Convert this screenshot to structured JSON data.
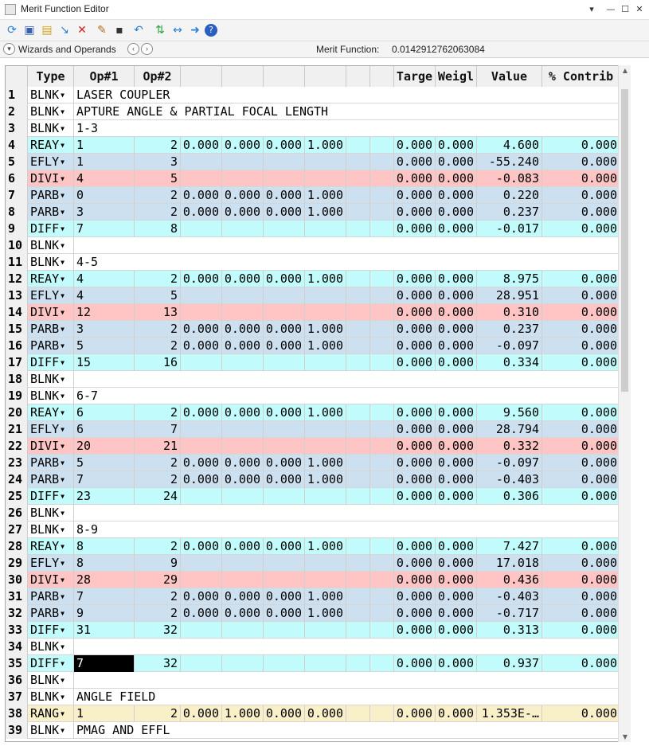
{
  "window": {
    "title": "Merit Function Editor",
    "buttons": [
      "▾",
      "—",
      "☐",
      "✕"
    ]
  },
  "toolbar": {
    "icons": [
      "refresh-icon",
      "save-icon",
      "load-icon",
      "insert-icon",
      "delete-icon",
      "wand-icon",
      "square-icon",
      "undo-icon",
      "arrows-icon",
      "left-right-icon",
      "right-arrow-icon",
      "help-icon"
    ]
  },
  "wizard": {
    "label": "Wizards and Operands",
    "mf_label": "Merit Function:",
    "mf_value": "0.0142912762063084"
  },
  "columns": [
    "Type",
    "Op#1",
    "Op#2",
    "",
    "",
    "",
    "",
    "",
    "",
    "Targe",
    "Weigl",
    "Value",
    "% Contrib"
  ],
  "colors": {
    "cyan": "#c1fbfb",
    "blue": "#cde0f0",
    "pink": "#ffc4c4",
    "white": "#ffffff",
    "tan": "#f9efc9"
  },
  "rows": [
    {
      "n": "1",
      "type": "BLNK",
      "comment": "LASER COUPLER",
      "bg": "white"
    },
    {
      "n": "2",
      "type": "BLNK",
      "comment": "APTURE ANGLE & PARTIAL FOCAL LENGTH",
      "bg": "white"
    },
    {
      "n": "3",
      "type": "BLNK",
      "comment": "1-3",
      "bg": "white"
    },
    {
      "n": "4",
      "type": "REAY",
      "op1": "1",
      "op2": "2",
      "h1": "0.000",
      "h2": "0.000",
      "h3": "0.000",
      "h4": "1.000",
      "target": "0.000",
      "weight": "0.000",
      "value": "4.600",
      "contrib": "0.000",
      "bg": "cyan"
    },
    {
      "n": "5",
      "type": "EFLY",
      "op1": "1",
      "op2": "3",
      "target": "0.000",
      "weight": "0.000",
      "value": "-55.240",
      "contrib": "0.000",
      "bg": "blue"
    },
    {
      "n": "6",
      "type": "DIVI",
      "op1": "4",
      "op2": "5",
      "target": "0.000",
      "weight": "0.000",
      "value": "-0.083",
      "contrib": "0.000",
      "bg": "pink"
    },
    {
      "n": "7",
      "type": "PARB",
      "op1": "0",
      "op2": "2",
      "h1": "0.000",
      "h2": "0.000",
      "h3": "0.000",
      "h4": "1.000",
      "target": "0.000",
      "weight": "0.000",
      "value": "0.220",
      "contrib": "0.000",
      "bg": "blue"
    },
    {
      "n": "8",
      "type": "PARB",
      "op1": "3",
      "op2": "2",
      "h1": "0.000",
      "h2": "0.000",
      "h3": "0.000",
      "h4": "1.000",
      "target": "0.000",
      "weight": "0.000",
      "value": "0.237",
      "contrib": "0.000",
      "bg": "blue"
    },
    {
      "n": "9",
      "type": "DIFF",
      "op1": "7",
      "op2": "8",
      "target": "0.000",
      "weight": "0.000",
      "value": "-0.017",
      "contrib": "0.000",
      "bg": "cyan"
    },
    {
      "n": "10",
      "type": "BLNK",
      "comment": "",
      "bg": "white"
    },
    {
      "n": "11",
      "type": "BLNK",
      "comment": "4-5",
      "bg": "white"
    },
    {
      "n": "12",
      "type": "REAY",
      "op1": "4",
      "op2": "2",
      "h1": "0.000",
      "h2": "0.000",
      "h3": "0.000",
      "h4": "1.000",
      "target": "0.000",
      "weight": "0.000",
      "value": "8.975",
      "contrib": "0.000",
      "bg": "cyan"
    },
    {
      "n": "13",
      "type": "EFLY",
      "op1": "4",
      "op2": "5",
      "target": "0.000",
      "weight": "0.000",
      "value": "28.951",
      "contrib": "0.000",
      "bg": "blue"
    },
    {
      "n": "14",
      "type": "DIVI",
      "op1": "12",
      "op2": "13",
      "target": "0.000",
      "weight": "0.000",
      "value": "0.310",
      "contrib": "0.000",
      "bg": "pink"
    },
    {
      "n": "15",
      "type": "PARB",
      "op1": "3",
      "op2": "2",
      "h1": "0.000",
      "h2": "0.000",
      "h3": "0.000",
      "h4": "1.000",
      "target": "0.000",
      "weight": "0.000",
      "value": "0.237",
      "contrib": "0.000",
      "bg": "blue"
    },
    {
      "n": "16",
      "type": "PARB",
      "op1": "5",
      "op2": "2",
      "h1": "0.000",
      "h2": "0.000",
      "h3": "0.000",
      "h4": "1.000",
      "target": "0.000",
      "weight": "0.000",
      "value": "-0.097",
      "contrib": "0.000",
      "bg": "blue"
    },
    {
      "n": "17",
      "type": "DIFF",
      "op1": "15",
      "op2": "16",
      "target": "0.000",
      "weight": "0.000",
      "value": "0.334",
      "contrib": "0.000",
      "bg": "cyan"
    },
    {
      "n": "18",
      "type": "BLNK",
      "comment": "",
      "bg": "white"
    },
    {
      "n": "19",
      "type": "BLNK",
      "comment": "6-7",
      "bg": "white"
    },
    {
      "n": "20",
      "type": "REAY",
      "op1": "6",
      "op2": "2",
      "h1": "0.000",
      "h2": "0.000",
      "h3": "0.000",
      "h4": "1.000",
      "target": "0.000",
      "weight": "0.000",
      "value": "9.560",
      "contrib": "0.000",
      "bg": "cyan"
    },
    {
      "n": "21",
      "type": "EFLY",
      "op1": "6",
      "op2": "7",
      "target": "0.000",
      "weight": "0.000",
      "value": "28.794",
      "contrib": "0.000",
      "bg": "blue"
    },
    {
      "n": "22",
      "type": "DIVI",
      "op1": "20",
      "op2": "21",
      "target": "0.000",
      "weight": "0.000",
      "value": "0.332",
      "contrib": "0.000",
      "bg": "pink"
    },
    {
      "n": "23",
      "type": "PARB",
      "op1": "5",
      "op2": "2",
      "h1": "0.000",
      "h2": "0.000",
      "h3": "0.000",
      "h4": "1.000",
      "target": "0.000",
      "weight": "0.000",
      "value": "-0.097",
      "contrib": "0.000",
      "bg": "blue"
    },
    {
      "n": "24",
      "type": "PARB",
      "op1": "7",
      "op2": "2",
      "h1": "0.000",
      "h2": "0.000",
      "h3": "0.000",
      "h4": "1.000",
      "target": "0.000",
      "weight": "0.000",
      "value": "-0.403",
      "contrib": "0.000",
      "bg": "blue"
    },
    {
      "n": "25",
      "type": "DIFF",
      "op1": "23",
      "op2": "24",
      "target": "0.000",
      "weight": "0.000",
      "value": "0.306",
      "contrib": "0.000",
      "bg": "cyan"
    },
    {
      "n": "26",
      "type": "BLNK",
      "comment": "",
      "bg": "white"
    },
    {
      "n": "27",
      "type": "BLNK",
      "comment": "8-9",
      "bg": "white"
    },
    {
      "n": "28",
      "type": "REAY",
      "op1": "8",
      "op2": "2",
      "h1": "0.000",
      "h2": "0.000",
      "h3": "0.000",
      "h4": "1.000",
      "target": "0.000",
      "weight": "0.000",
      "value": "7.427",
      "contrib": "0.000",
      "bg": "cyan"
    },
    {
      "n": "29",
      "type": "EFLY",
      "op1": "8",
      "op2": "9",
      "target": "0.000",
      "weight": "0.000",
      "value": "17.018",
      "contrib": "0.000",
      "bg": "blue"
    },
    {
      "n": "30",
      "type": "DIVI",
      "op1": "28",
      "op2": "29",
      "target": "0.000",
      "weight": "0.000",
      "value": "0.436",
      "contrib": "0.000",
      "bg": "pink"
    },
    {
      "n": "31",
      "type": "PARB",
      "op1": "7",
      "op2": "2",
      "h1": "0.000",
      "h2": "0.000",
      "h3": "0.000",
      "h4": "1.000",
      "target": "0.000",
      "weight": "0.000",
      "value": "-0.403",
      "contrib": "0.000",
      "bg": "blue"
    },
    {
      "n": "32",
      "type": "PARB",
      "op1": "9",
      "op2": "2",
      "h1": "0.000",
      "h2": "0.000",
      "h3": "0.000",
      "h4": "1.000",
      "target": "0.000",
      "weight": "0.000",
      "value": "-0.717",
      "contrib": "0.000",
      "bg": "blue"
    },
    {
      "n": "33",
      "type": "DIFF",
      "op1": "31",
      "op2": "32",
      "target": "0.000",
      "weight": "0.000",
      "value": "0.313",
      "contrib": "0.000",
      "bg": "cyan"
    },
    {
      "n": "34",
      "type": "BLNK",
      "comment": "",
      "bg": "white"
    },
    {
      "n": "35",
      "type": "DIFF",
      "op1": "7",
      "op2": "32",
      "target": "0.000",
      "weight": "0.000",
      "value": "0.937",
      "contrib": "0.000",
      "bg": "cyan",
      "selected": true
    },
    {
      "n": "36",
      "type": "BLNK",
      "comment": "",
      "bg": "white"
    },
    {
      "n": "37",
      "type": "BLNK",
      "comment": "ANGLE FIELD",
      "bg": "white"
    },
    {
      "n": "38",
      "type": "RANG",
      "op1": "1",
      "op2": "2",
      "h1": "0.000",
      "h2": "1.000",
      "h3": "0.000",
      "h4": "0.000",
      "target": "0.000",
      "weight": "0.000",
      "value": "1.353E-…",
      "contrib": "0.000",
      "bg": "tan"
    },
    {
      "n": "39",
      "type": "BLNK",
      "comment": "PMAG AND EFFL",
      "bg": "white"
    }
  ]
}
